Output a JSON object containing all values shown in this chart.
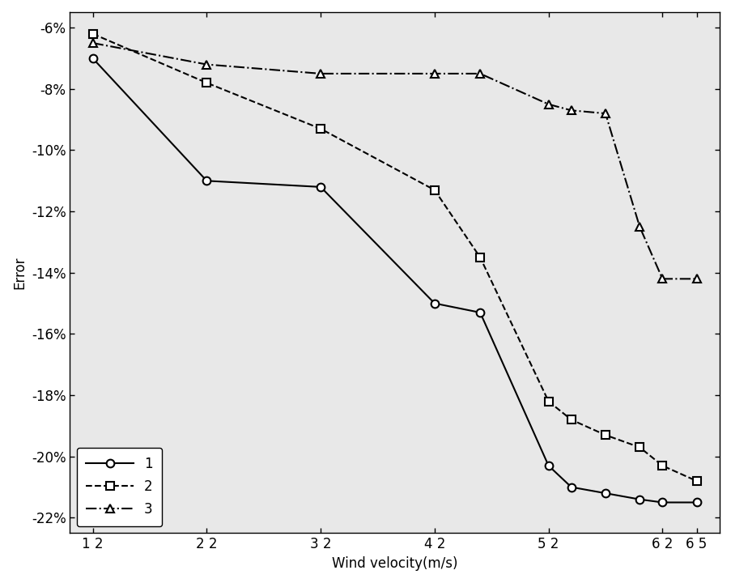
{
  "x": [
    12,
    22,
    32,
    42,
    46,
    52,
    54,
    57,
    60,
    62,
    65
  ],
  "series1": [
    -7.0,
    -11.0,
    -11.2,
    -15.0,
    -15.3,
    -20.3,
    -21.0,
    -21.2,
    -21.4,
    -21.5,
    -21.5
  ],
  "series2": [
    -6.2,
    -7.8,
    -9.3,
    -11.3,
    -13.5,
    -18.2,
    -18.8,
    -19.3,
    -19.7,
    -20.3,
    -20.8
  ],
  "series3": [
    -6.5,
    -7.2,
    -7.5,
    -7.5,
    -7.5,
    -8.5,
    -8.7,
    -8.8,
    -12.5,
    -14.2,
    -14.2
  ],
  "xticks": [
    12,
    22,
    32,
    42,
    52,
    62,
    65
  ],
  "xtick_labels": [
    "1 2",
    "2 2",
    "3 2",
    "4 2",
    "5 2",
    "6 2",
    "6 5"
  ],
  "yticks": [
    -6,
    -8,
    -10,
    -12,
    -14,
    -16,
    -18,
    -20,
    -22
  ],
  "xlabel": "Wind velocity(m/s)",
  "ylabel": "Error",
  "legend_labels": [
    "1",
    "2",
    "3"
  ],
  "line_color": "#000000",
  "axes_bg_color": "#e8e8e8",
  "background_color": "#ffffff",
  "ylim": [
    -22.5,
    -5.5
  ],
  "xlim": [
    10,
    67
  ]
}
